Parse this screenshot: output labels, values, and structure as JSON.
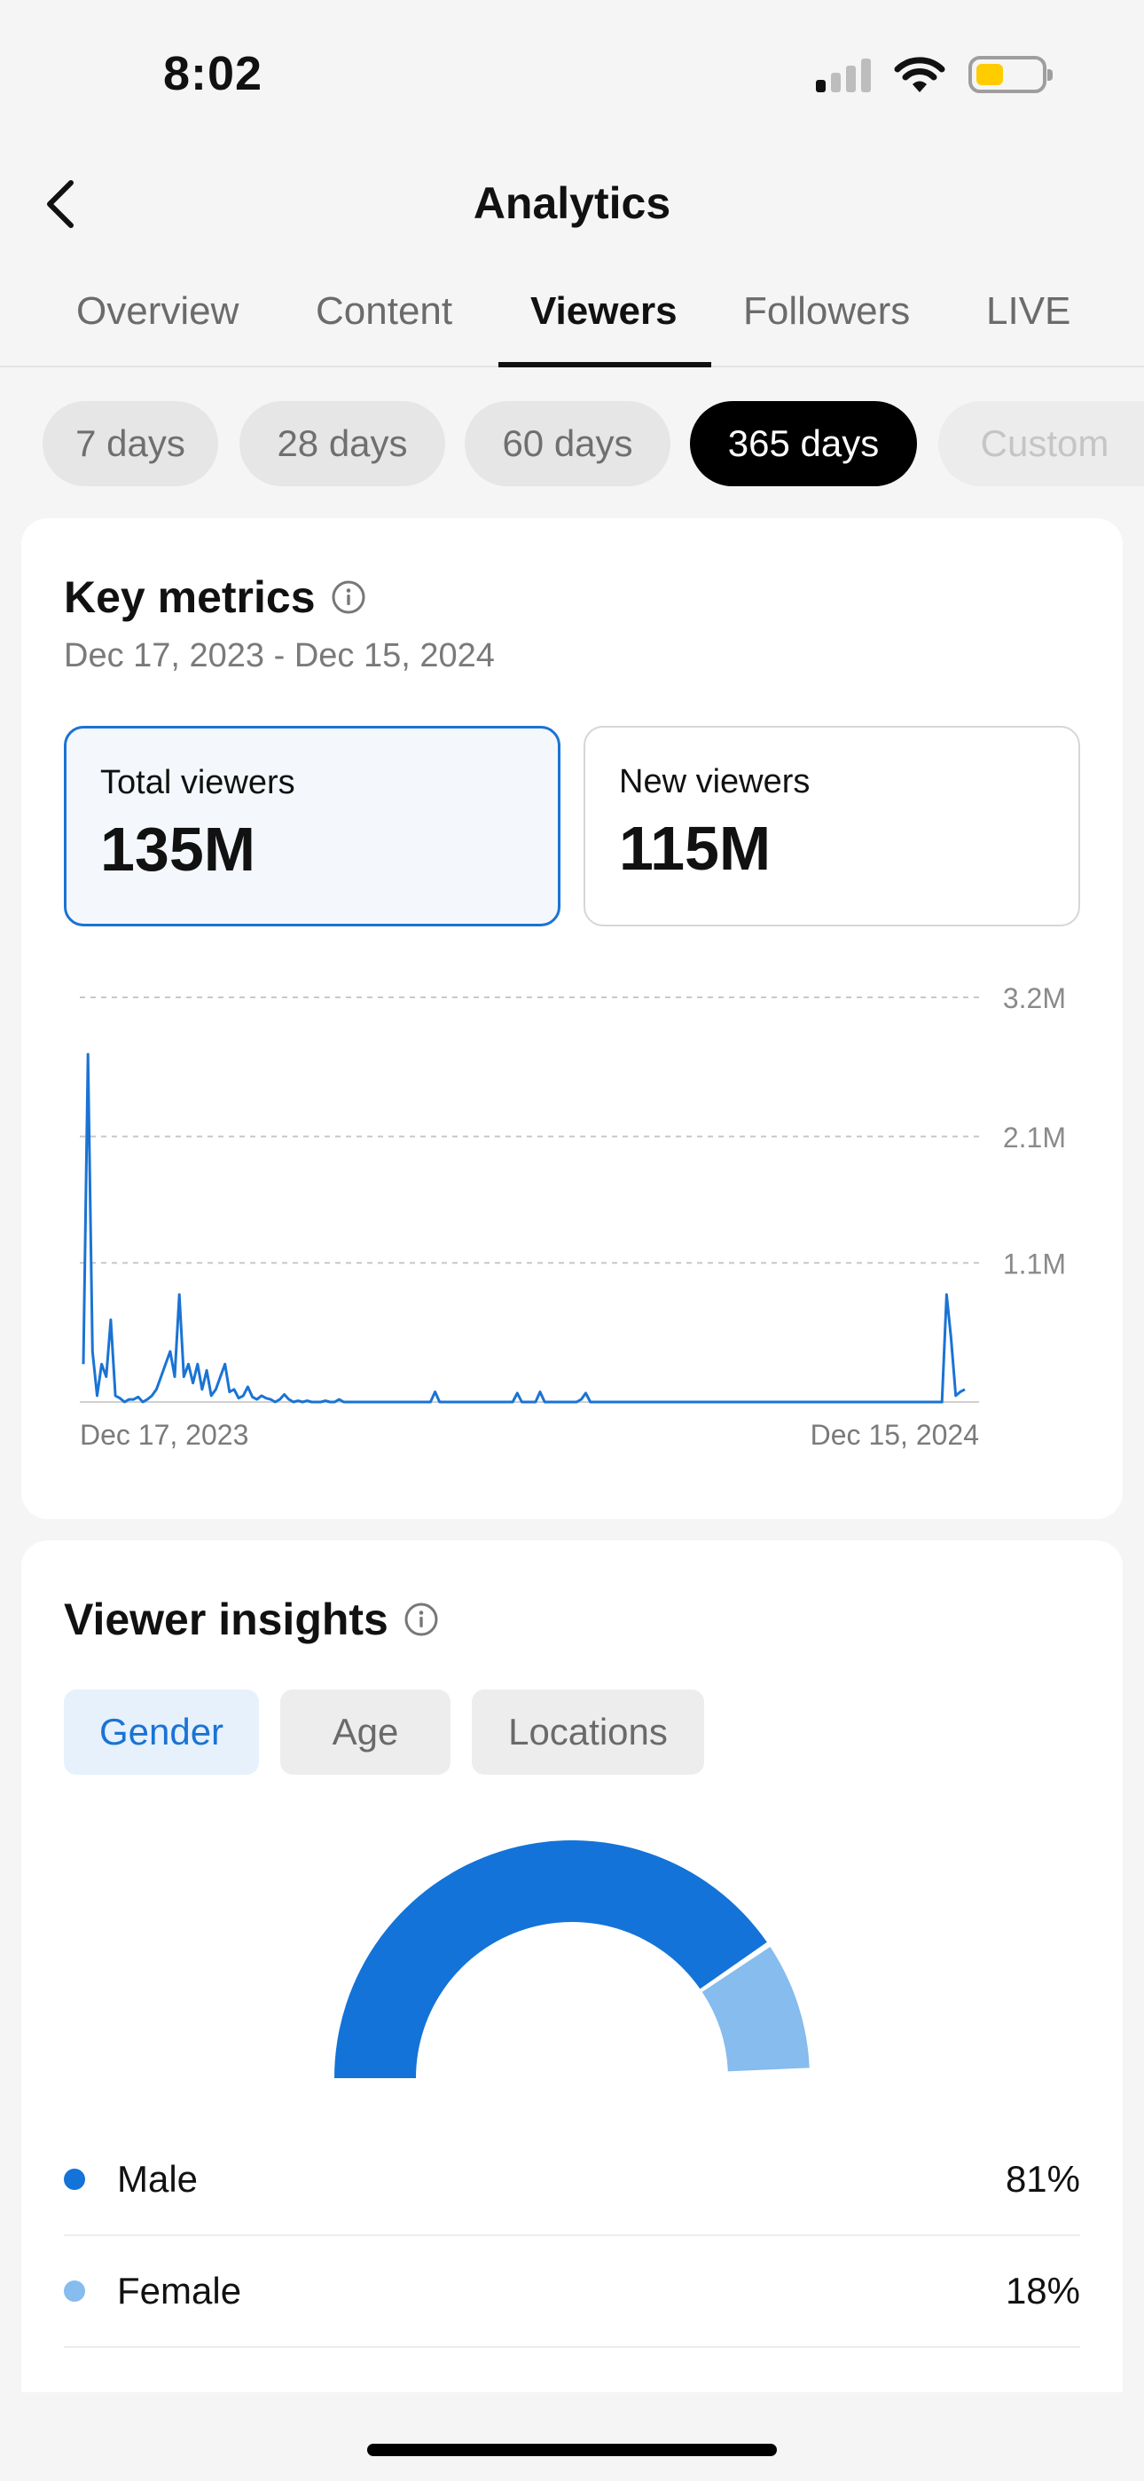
{
  "status_bar": {
    "time": "8:02"
  },
  "header": {
    "title": "Analytics"
  },
  "tabs": [
    "Overview",
    "Content",
    "Viewers",
    "Followers",
    "LIVE"
  ],
  "periods": [
    "7 days",
    "28 days",
    "60 days",
    "365 days",
    "Custom"
  ],
  "key_metrics": {
    "title": "Key metrics",
    "date_range": "Dec 17, 2023 - Dec 15, 2024",
    "cards": [
      {
        "label": "Total viewers",
        "value": "135M"
      },
      {
        "label": "New viewers",
        "value": "115M"
      }
    ]
  },
  "chart_data": {
    "type": "line",
    "x_labels": [
      "Dec 17, 2023",
      "Dec 15, 2024"
    ],
    "y_ticks": [
      "3.2M",
      "2.1M",
      "1.1M"
    ],
    "ylim": [
      0,
      3.2
    ],
    "y_units": "M",
    "color": "#1a73d4",
    "values": [
      0.3,
      2.75,
      0.4,
      0.05,
      0.3,
      0.2,
      0.65,
      0.05,
      0.03,
      0.0,
      0.02,
      0.02,
      0.04,
      0.0,
      0.02,
      0.05,
      0.1,
      0.2,
      0.3,
      0.4,
      0.2,
      0.85,
      0.2,
      0.3,
      0.15,
      0.3,
      0.1,
      0.25,
      0.05,
      0.1,
      0.2,
      0.3,
      0.08,
      0.1,
      0.03,
      0.05,
      0.12,
      0.04,
      0.02,
      0.05,
      0.03,
      0.02,
      0.0,
      0.02,
      0.06,
      0.02,
      0.0,
      0.01,
      0.0,
      0.01,
      0.0,
      0.0,
      0.0,
      0.01,
      0.0,
      0.0,
      0.02,
      0.0,
      0.0,
      0.0,
      0.0,
      0.0,
      0.0,
      0.0,
      0.0,
      0.0,
      0.0,
      0.0,
      0.0,
      0.0,
      0.0,
      0.0,
      0.0,
      0.0,
      0.0,
      0.0,
      0.0,
      0.08,
      0.0,
      0.0,
      0.0,
      0.0,
      0.0,
      0.0,
      0.0,
      0.0,
      0.0,
      0.0,
      0.0,
      0.0,
      0.0,
      0.0,
      0.0,
      0.0,
      0.0,
      0.07,
      0.0,
      0.0,
      0.0,
      0.0,
      0.08,
      0.0,
      0.0,
      0.0,
      0.0,
      0.0,
      0.0,
      0.0,
      0.0,
      0.02,
      0.07,
      0.0,
      0.0,
      0.0,
      0.0,
      0.0,
      0.0,
      0.0,
      0.0,
      0.0,
      0.0,
      0.0,
      0.0,
      0.0,
      0.0,
      0.0,
      0.0,
      0.0,
      0.0,
      0.0,
      0.0,
      0.0,
      0.0,
      0.0,
      0.0,
      0.0,
      0.0,
      0.0,
      0.0,
      0.0,
      0.0,
      0.0,
      0.0,
      0.0,
      0.0,
      0.0,
      0.0,
      0.0,
      0.0,
      0.0,
      0.0,
      0.0,
      0.0,
      0.0,
      0.0,
      0.0,
      0.0,
      0.0,
      0.0,
      0.0,
      0.0,
      0.0,
      0.0,
      0.0,
      0.0,
      0.0,
      0.0,
      0.0,
      0.0,
      0.0,
      0.0,
      0.0,
      0.0,
      0.0,
      0.0,
      0.0,
      0.0,
      0.0,
      0.0,
      0.0,
      0.0,
      0.0,
      0.0,
      0.0,
      0.0,
      0.0,
      0.0,
      0.0,
      0.0,
      0.85,
      0.5,
      0.05,
      0.08,
      0.1
    ]
  },
  "viewer_insights": {
    "title": "Viewer insights",
    "segments": [
      "Gender",
      "Age",
      "Locations"
    ],
    "gender": [
      {
        "label": "Male",
        "value": "81%",
        "fraction": 0.81,
        "color": "#1373d8"
      },
      {
        "label": "Female",
        "value": "18%",
        "fraction": 0.18,
        "color": "#86bcee"
      }
    ]
  }
}
